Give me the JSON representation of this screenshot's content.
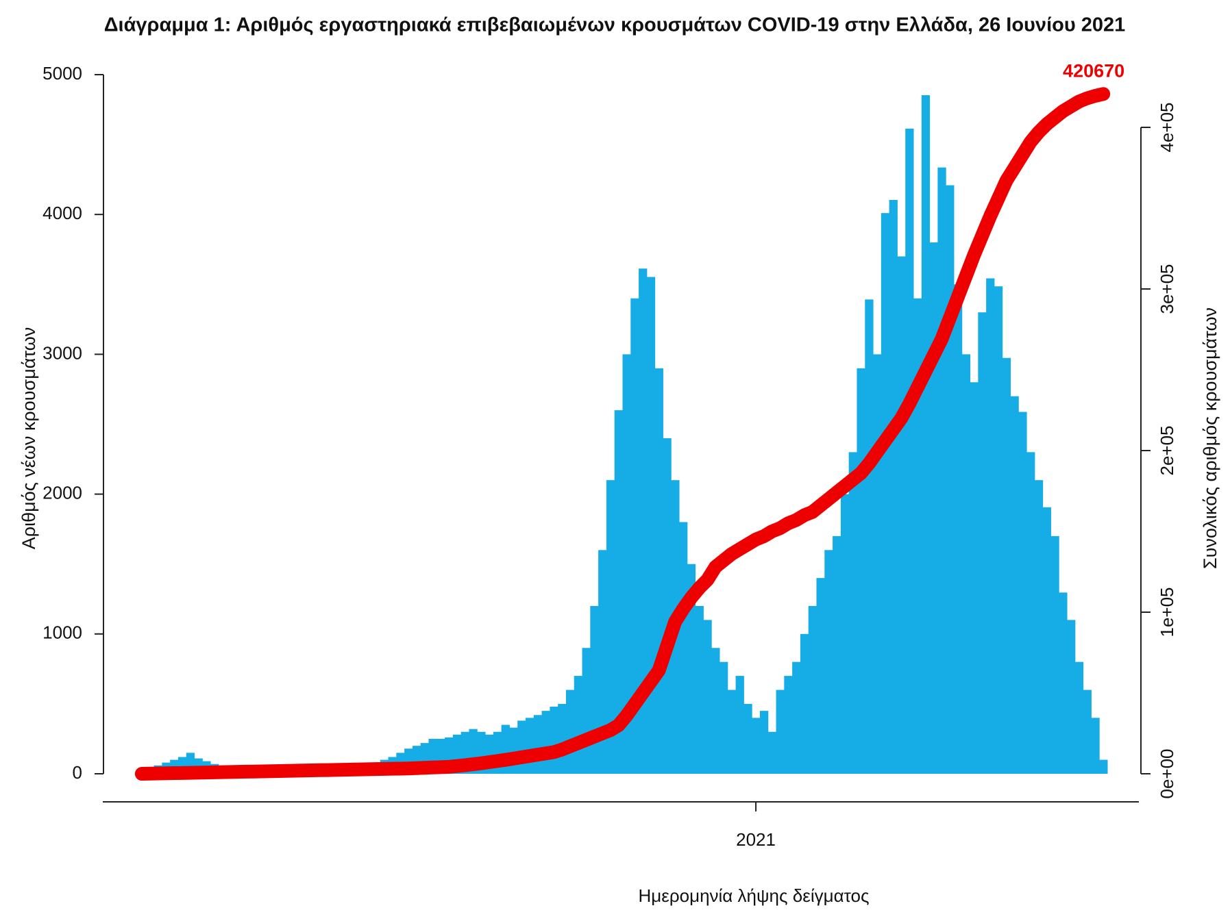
{
  "chart_data": {
    "type": "bar-line",
    "title": "Διάγραμμα 1: Αριθμός εργαστηριακά επιβεβαιωμένων κρουσμάτων COVID-19 στην Ελλάδα, 26 Ιουνίου 2021",
    "x_label": "Ημερομηνία λήψης δείγματος",
    "y_label": "Αριθμός νέων κρουσμάτων",
    "y2_label": "Συνολικός αριθμός κρουσμάτων",
    "xlim": [
      -0.5,
      119.5
    ],
    "xticks": [
      {
        "value": 76,
        "label": "2021"
      }
    ],
    "ylim": [
      0,
      5000
    ],
    "yticks": [
      0,
      1000,
      2000,
      3000,
      4000,
      5000
    ],
    "y2lim": [
      0,
      400000
    ],
    "y2ticks": [
      {
        "value": 0,
        "label": "0e+00"
      },
      {
        "value": 100000,
        "label": "1e+05"
      },
      {
        "value": 200000,
        "label": "2e+05"
      },
      {
        "value": 300000,
        "label": "3e+05"
      },
      {
        "value": 400000,
        "label": "4e+05"
      }
    ],
    "series": [
      {
        "color": "#16ade6",
        "values": [
          20,
          40,
          60,
          80,
          100,
          120,
          150,
          110,
          90,
          70,
          60,
          50,
          40,
          30,
          25,
          20,
          20,
          20,
          25,
          30,
          30,
          35,
          40,
          40,
          45,
          50,
          55,
          60,
          70,
          80,
          100,
          120,
          150,
          180,
          200,
          220,
          250,
          250,
          260,
          280,
          300,
          320,
          300,
          280,
          300,
          350,
          330,
          380,
          400,
          420,
          450,
          480,
          500,
          600,
          700,
          900,
          1200,
          1600,
          2100,
          2600,
          3000,
          3400,
          3613,
          3553,
          2900,
          2400,
          2100,
          1800,
          1500,
          1200,
          1100,
          900,
          800,
          600,
          700,
          500,
          400,
          450,
          300,
          600,
          700,
          800,
          1000,
          1200,
          1400,
          1600,
          1700,
          2000,
          2300,
          2900,
          3392,
          3000,
          4010,
          4104,
          3700,
          4614,
          3400,
          4853,
          3800,
          4336,
          4209,
          3500,
          3000,
          2800,
          3300,
          3543,
          3486,
          2974,
          2700,
          2588,
          2300,
          2100,
          1906,
          1700,
          1296,
          1100,
          800,
          600,
          400,
          100
        ]
      },
      {
        "color": "#ee0000",
        "axis": "y2",
        "values": [
          0,
          100,
          200,
          300,
          400,
          500,
          600,
          700,
          800,
          900,
          1000,
          1100,
          1200,
          1300,
          1400,
          1500,
          1600,
          1700,
          1800,
          1900,
          2000,
          2100,
          2200,
          2300,
          2400,
          2500,
          2600,
          2700,
          2800,
          2900,
          3000,
          3100,
          3200,
          3300,
          3500,
          3700,
          3900,
          4100,
          4300,
          4800,
          5300,
          5900,
          6500,
          7200,
          7900,
          8600,
          9400,
          10200,
          11000,
          11800,
          12600,
          13400,
          15000,
          17000,
          19000,
          21000,
          23000,
          25000,
          27000,
          30000,
          36000,
          43000,
          50000,
          57000,
          64000,
          79000,
          94000,
          102000,
          109000,
          115000,
          120000,
          128000,
          132000,
          136000,
          139000,
          142000,
          145000,
          147000,
          150000,
          152000,
          155000,
          157000,
          160000,
          162000,
          166000,
          170000,
          174000,
          178000,
          182000,
          186000,
          192000,
          199000,
          206000,
          213000,
          220000,
          229000,
          239000,
          249000,
          259000,
          269000,
          282000,
          295000,
          308000,
          321000,
          333000,
          345000,
          356000,
          367000,
          375000,
          383000,
          391000,
          397000,
          402000,
          406000,
          410000,
          413000,
          416000,
          418000,
          419500,
          420670
        ]
      }
    ]
  }
}
